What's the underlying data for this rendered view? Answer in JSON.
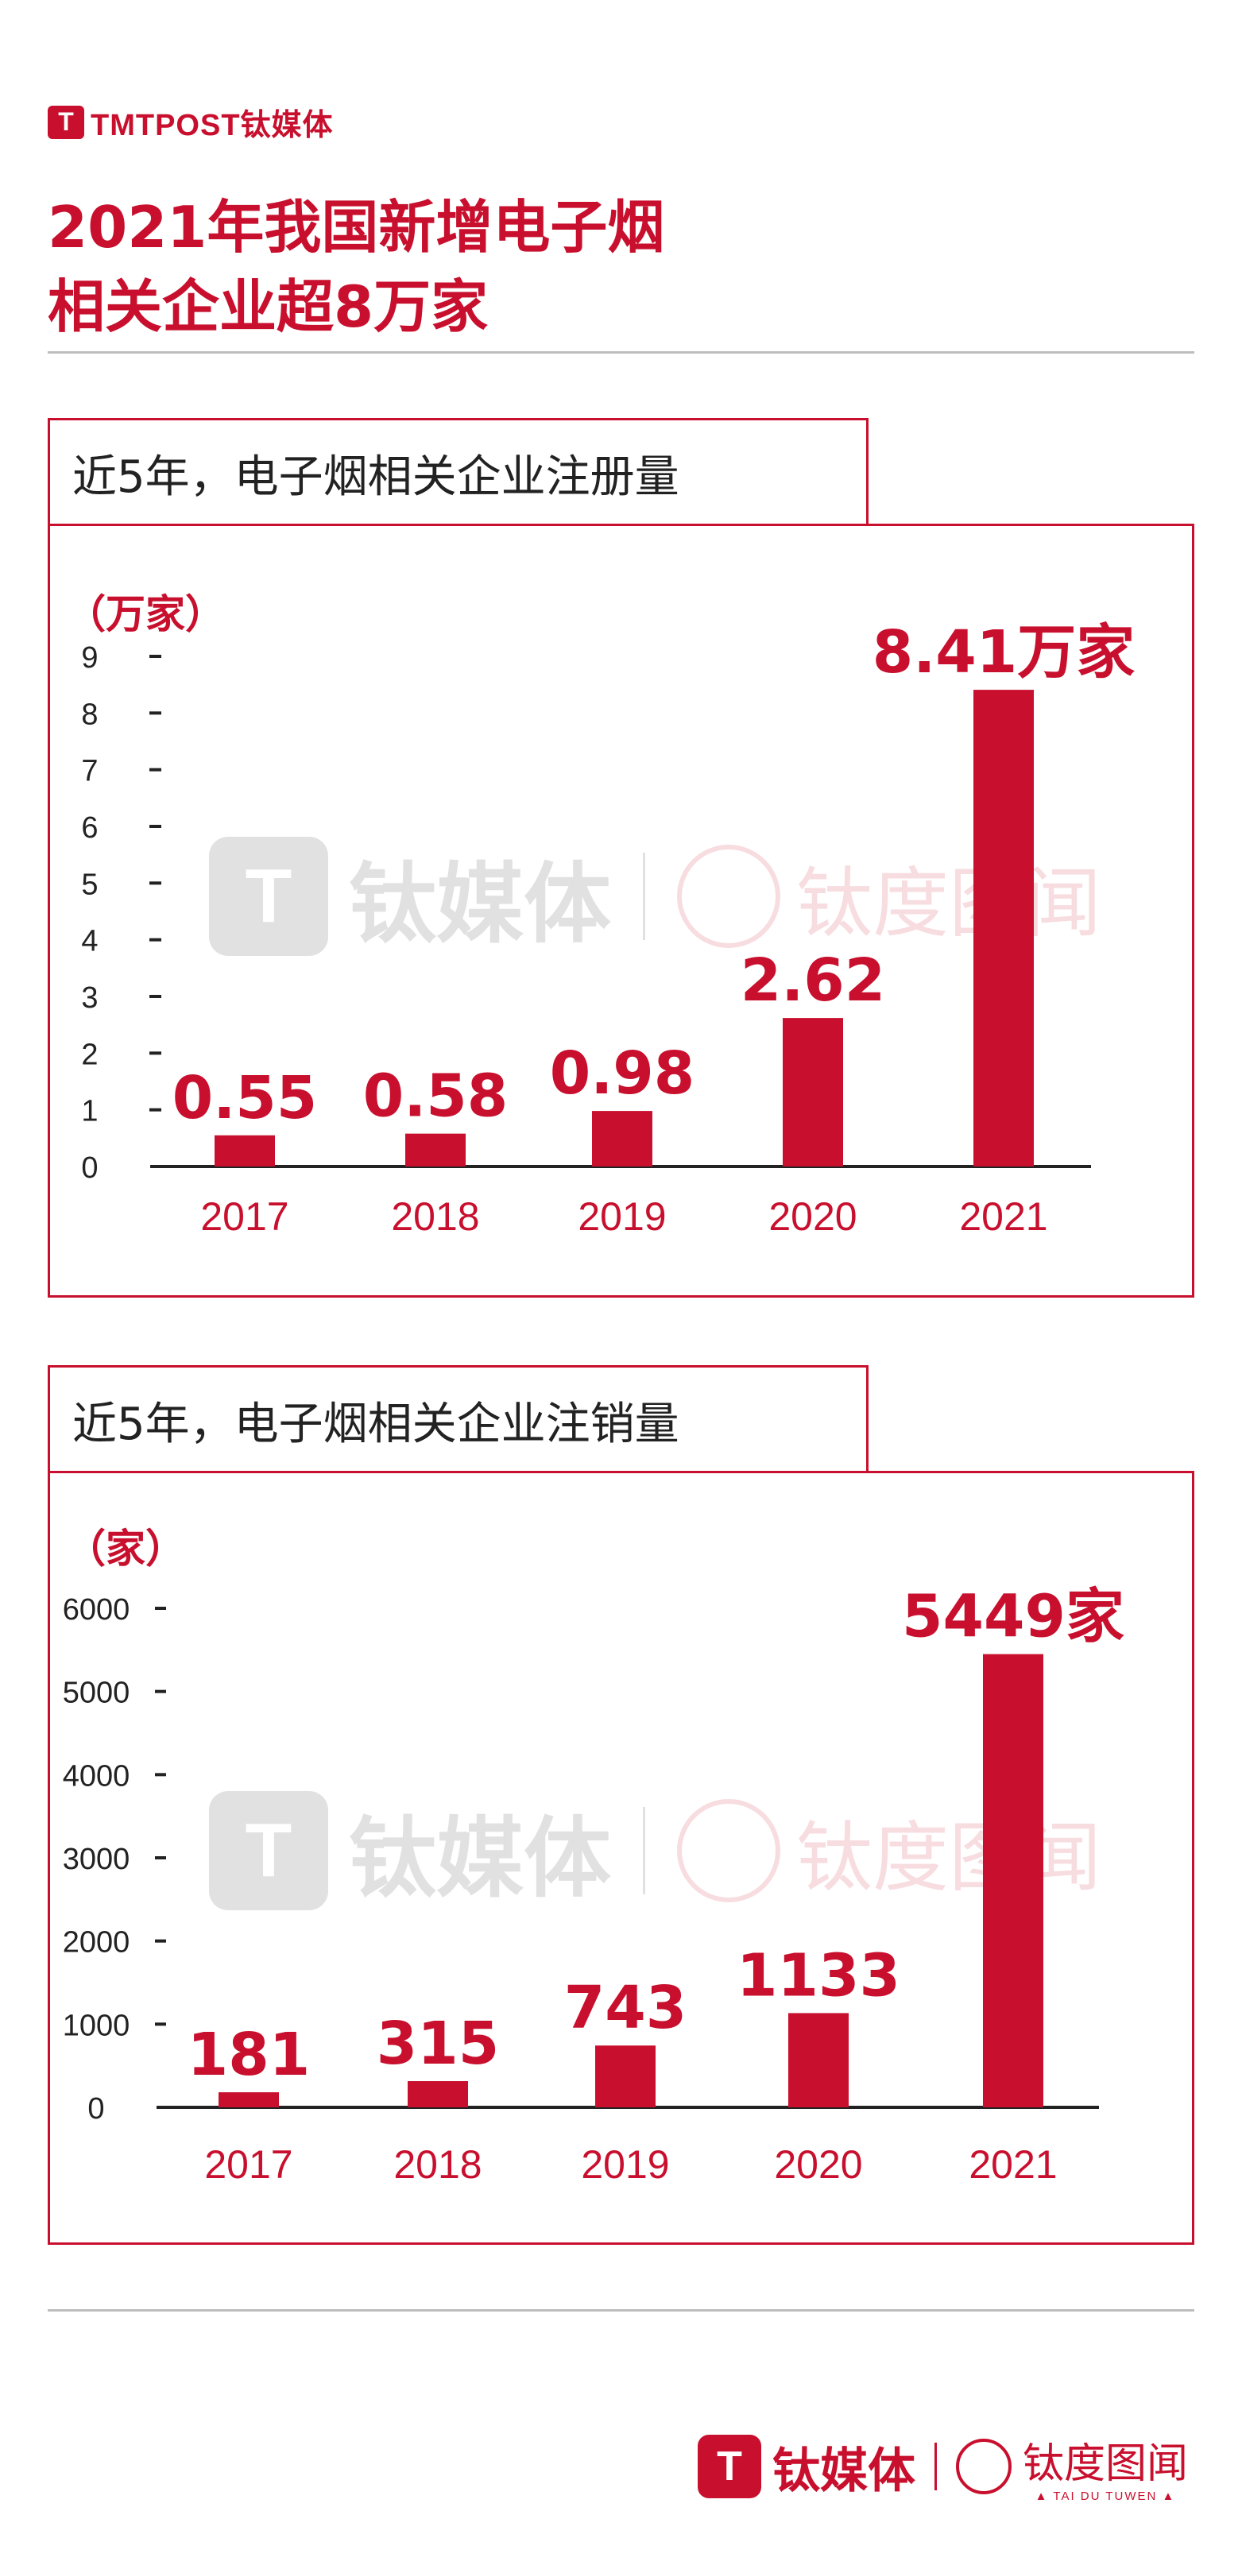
{
  "brand": {
    "logo_mark": "T",
    "logo_text": "TMTPOST钛媒体"
  },
  "title": {
    "line1": "2021年我国新增电子烟",
    "line2": "相关企业超8万家"
  },
  "watermark": {
    "mark": "T",
    "name": "钛媒体",
    "name2": "钛度图闻",
    "sub": "▲ TAI DU TUWEN ▲"
  },
  "footer": {
    "mark": "T",
    "name": "钛媒体",
    "name2": "钛度图闻",
    "sub": "▲ TAI DU TUWEN ▲"
  },
  "colors": {
    "accent": "#c8102e",
    "axis": "#222222"
  },
  "chart_data": [
    {
      "type": "bar",
      "title": "近5年，电子烟相关企业注册量",
      "ylabel": "（万家）",
      "categories": [
        "2017",
        "2018",
        "2019",
        "2020",
        "2021"
      ],
      "values": [
        0.55,
        0.58,
        0.98,
        2.62,
        8.41
      ],
      "data_labels": [
        "0.55",
        "0.58",
        "0.98",
        "2.62",
        "8.41万家"
      ],
      "yticks": [
        0,
        1,
        2,
        3,
        4,
        5,
        6,
        7,
        8,
        9
      ],
      "ylim": [
        0,
        9
      ]
    },
    {
      "type": "bar",
      "title": "近5年，电子烟相关企业注销量",
      "ylabel": "（家）",
      "categories": [
        "2017",
        "2018",
        "2019",
        "2020",
        "2021"
      ],
      "values": [
        181,
        315,
        743,
        1133,
        5449
      ],
      "data_labels": [
        "181",
        "315",
        "743",
        "1133",
        "5449家"
      ],
      "yticks": [
        0,
        1000,
        2000,
        3000,
        4000,
        5000,
        6000
      ],
      "ylim": [
        0,
        6000
      ]
    }
  ]
}
